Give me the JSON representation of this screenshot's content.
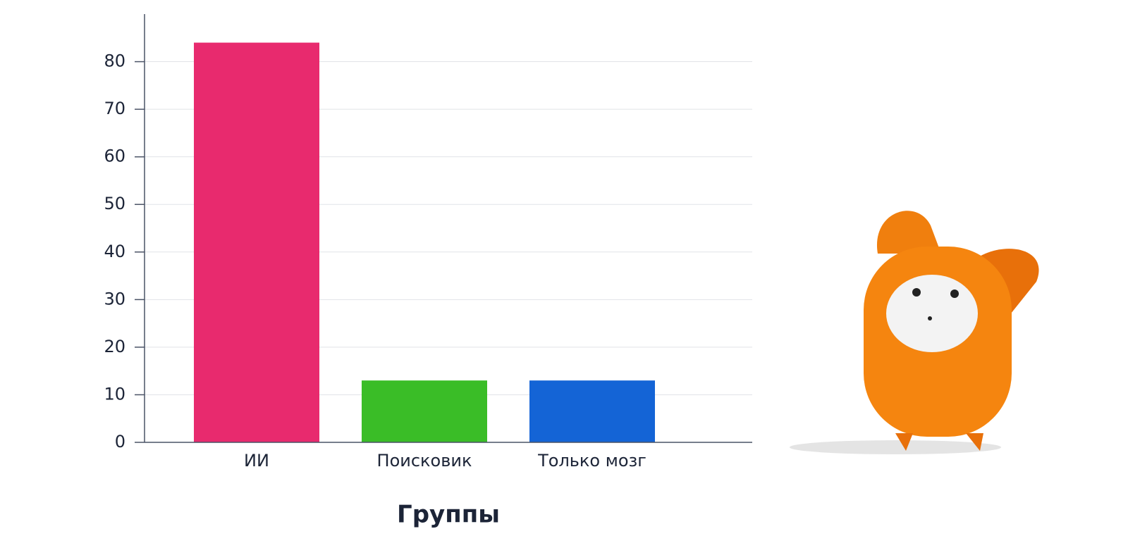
{
  "chart_data": {
    "type": "bar",
    "x_label": "Группы",
    "categories": [
      "ИИ",
      "Поисковик",
      "Только мозг"
    ],
    "values": [
      84,
      13,
      13
    ],
    "colors": [
      "#e82a6e",
      "#3abd27",
      "#1464d6"
    ],
    "ylim": [
      0,
      90
    ],
    "yticks": [
      0,
      10,
      20,
      30,
      40,
      50,
      60,
      70,
      80
    ],
    "grid": true
  }
}
